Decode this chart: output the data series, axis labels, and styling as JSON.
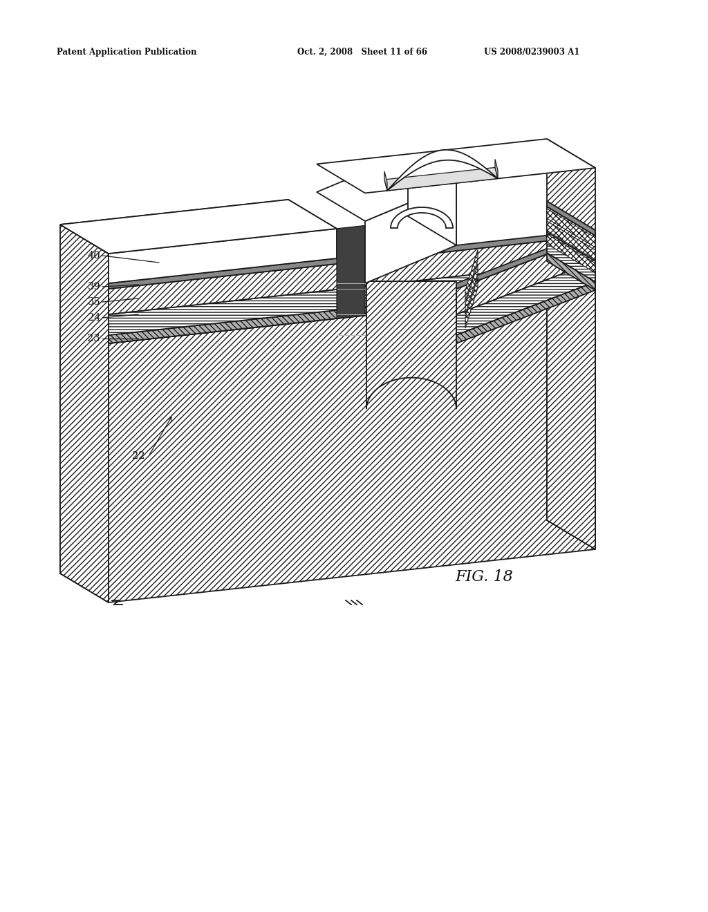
{
  "bg_color": "#ffffff",
  "header_left": "Patent Application Publication",
  "header_mid": "Oct. 2, 2008   Sheet 11 of 66",
  "header_right": "US 2008/0239003 A1",
  "fig_label": "FIG. 18",
  "line_color": "#1a1a1a",
  "hatch_color_diag": "#888888",
  "hatch_color_horiz": "#888888"
}
